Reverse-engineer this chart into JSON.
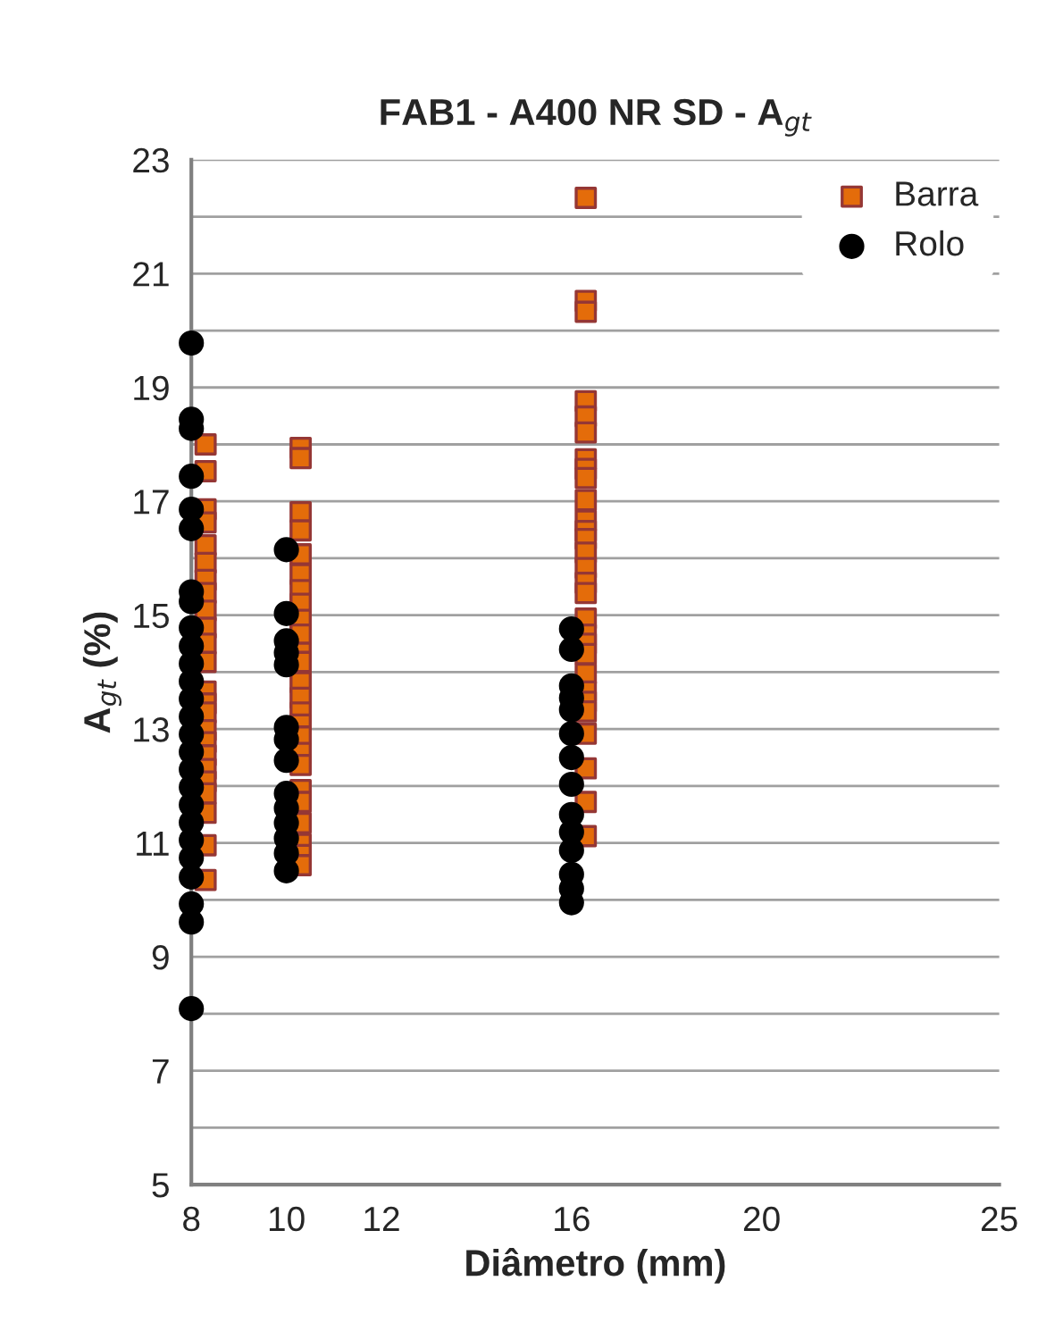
{
  "chart_data": {
    "type": "scatter",
    "title": "FAB1 - A400 NR SD - A$_{gt}$",
    "xlabel": "Diâmetro (mm)",
    "ylabel": "A$_{gt}$ (%)",
    "xlim": [
      8,
      25
    ],
    "xticks": [
      8,
      10,
      12,
      16,
      20,
      25
    ],
    "ylim": [
      5,
      23
    ],
    "yticks": [
      5,
      {
        "value": 6,
        "label": null
      },
      7,
      {
        "value": 8,
        "label": null
      },
      9,
      {
        "value": 10,
        "label": null
      },
      11,
      {
        "value": 12,
        "label": null
      },
      13,
      {
        "value": 14,
        "label": null
      },
      15,
      {
        "value": 16,
        "label": null
      },
      17,
      {
        "value": 18,
        "label": null
      },
      19,
      {
        "value": 20,
        "label": null
      },
      21,
      {
        "value": 22,
        "label": null
      },
      23
    ],
    "grid": "y",
    "legend": "top right",
    "series": [
      {
        "name": "Barra",
        "color": "#e46c0a",
        "marker": "square",
        "x": [
          8.3,
          8.3,
          8.3,
          8.3,
          8.3,
          8.3,
          8.3,
          8.3,
          8.3,
          8.3,
          8.3,
          8.3,
          8.3,
          8.3,
          8.3,
          8.3,
          8.3,
          8.3,
          8.3,
          8.3,
          8.3,
          8.3,
          8.3,
          8.3,
          10.3,
          10.3,
          10.3,
          10.3,
          10.3,
          10.3,
          10.3,
          10.3,
          10.3,
          10.3,
          10.3,
          10.3,
          10.3,
          10.3,
          10.3,
          10.3,
          10.3,
          10.3,
          10.3,
          10.3,
          10.3,
          10.3,
          10.3,
          10.3,
          10.3,
          16.3,
          16.3,
          16.3,
          16.3,
          16.3,
          16.3,
          16.3,
          16.3,
          16.3,
          16.3,
          16.3,
          16.3,
          16.3,
          16.3,
          16.3,
          16.3,
          16.3,
          16.3,
          16.3,
          16.3,
          16.3,
          16.3,
          16.3,
          16.3,
          16.3,
          16.3,
          16.3,
          16.3,
          16.3
        ],
        "values": [
          18.0,
          17.53,
          16.86,
          16.63,
          16.23,
          15.92,
          15.62,
          15.39,
          15.08,
          14.78,
          14.5,
          14.18,
          13.66,
          13.45,
          13.29,
          12.98,
          12.77,
          12.54,
          12.3,
          12.08,
          11.87,
          11.53,
          10.96,
          10.35,
          17.94,
          17.76,
          16.81,
          16.49,
          16.07,
          15.72,
          15.44,
          15.2,
          14.92,
          14.66,
          14.34,
          14.18,
          13.82,
          13.55,
          13.29,
          13.08,
          12.87,
          12.58,
          12.37,
          11.93,
          11.72,
          11.35,
          10.98,
          10.79,
          10.61,
          22.33,
          20.52,
          20.33,
          18.76,
          18.49,
          18.21,
          17.74,
          17.57,
          17.41,
          17.02,
          16.66,
          16.48,
          16.34,
          16.1,
          15.83,
          15.57,
          15.39,
          14.94,
          14.66,
          14.5,
          14.32,
          13.97,
          13.66,
          13.48,
          13.31,
          12.92,
          12.31,
          11.72,
          11.12
        ]
      },
      {
        "name": "Rolo",
        "color": "#000000",
        "marker": "circle",
        "x": [
          8,
          8,
          8,
          8,
          8,
          8,
          8,
          8,
          8,
          8,
          8,
          8,
          8,
          8,
          8,
          8,
          8,
          8,
          8,
          8,
          8,
          8,
          8,
          8,
          8,
          8,
          10,
          10,
          10,
          10,
          10,
          10,
          10,
          10,
          10,
          10,
          10,
          10,
          10,
          10,
          16,
          16,
          16,
          16,
          16,
          16,
          16,
          16,
          16,
          16,
          16,
          16,
          16,
          16
        ],
        "values": [
          19.78,
          18.44,
          18.28,
          17.44,
          16.86,
          16.52,
          15.41,
          15.24,
          14.78,
          14.46,
          14.15,
          13.84,
          13.53,
          13.22,
          12.91,
          12.6,
          12.29,
          11.98,
          11.67,
          11.36,
          11.05,
          10.74,
          10.4,
          9.93,
          9.61,
          8.09,
          16.15,
          15.03,
          14.55,
          14.34,
          14.13,
          13.03,
          12.82,
          12.45,
          11.87,
          11.61,
          11.35,
          11.08,
          10.82,
          10.51,
          14.76,
          14.4,
          13.76,
          13.55,
          13.34,
          12.92,
          12.5,
          12.03,
          11.5,
          11.19,
          10.87,
          10.45,
          10.2,
          9.95
        ]
      }
    ]
  }
}
